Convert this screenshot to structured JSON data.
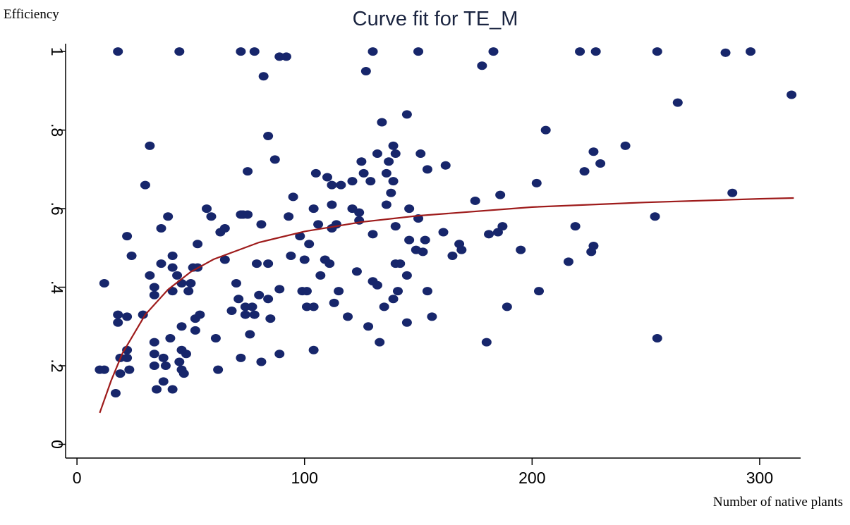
{
  "chart_data": {
    "type": "scatter",
    "title": "Curve fit for TE_M",
    "y_label": "Efficiency",
    "x_label": "Number of native plants",
    "xlim": [
      -5,
      318
    ],
    "xticks": [
      0,
      100,
      200,
      300
    ],
    "ylim": [
      -0.035,
      1.02
    ],
    "yticks": [
      0,
      {
        "value": 0.2,
        "label": ".2"
      },
      {
        "value": 0.4,
        "label": ".4"
      },
      {
        "value": 0.6,
        "label": ".6"
      },
      {
        "value": 0.8,
        "label": ".8"
      },
      1
    ],
    "grid": false,
    "series": [
      {
        "type": "scatter",
        "color": "#17266b",
        "x": [
          18,
          45,
          72,
          78,
          130,
          150,
          183,
          221,
          228,
          255,
          296,
          285,
          89,
          92,
          127,
          178,
          82,
          10,
          12,
          12,
          18,
          18,
          17,
          19,
          19,
          22,
          22,
          23,
          22,
          22,
          24,
          29,
          30,
          32,
          32,
          34,
          34,
          34,
          34,
          34,
          35,
          37,
          37,
          38,
          38,
          40,
          39,
          41,
          42,
          42,
          42,
          42,
          44,
          45,
          46,
          46,
          46,
          46,
          47,
          48,
          49,
          50,
          51,
          52,
          52,
          53,
          53,
          54,
          57,
          59,
          61,
          62,
          63,
          65,
          65,
          68,
          70,
          71,
          72,
          72,
          73,
          74,
          74,
          75,
          75,
          76,
          77,
          78,
          79,
          80,
          81,
          81,
          84,
          84,
          84,
          85,
          87,
          89,
          89,
          93,
          94,
          95,
          98,
          99,
          100,
          101,
          101,
          102,
          104,
          104,
          104,
          105,
          106,
          107,
          109,
          110,
          111,
          112,
          112,
          112,
          113,
          114,
          115,
          116,
          119,
          121,
          121,
          123,
          124,
          124,
          125,
          126,
          128,
          129,
          130,
          130,
          132,
          132,
          133,
          134,
          135,
          136,
          137,
          136,
          138,
          139,
          139,
          139,
          140,
          140,
          140,
          141,
          142,
          145,
          145,
          145,
          146,
          146,
          149,
          150,
          151,
          152,
          153,
          154,
          154,
          156,
          161,
          162,
          165,
          168,
          169,
          175,
          180,
          181,
          185,
          186,
          187,
          189,
          195,
          202,
          203,
          206,
          216,
          219,
          223,
          226,
          227,
          227,
          230,
          241,
          254,
          255,
          264,
          288,
          314
        ],
        "y": [
          1,
          1,
          1,
          1,
          1,
          1,
          1,
          1,
          1,
          1,
          1,
          0.997,
          0.987,
          0.987,
          0.95,
          0.964,
          0.937,
          0.19,
          0.19,
          0.41,
          0.31,
          0.33,
          0.13,
          0.18,
          0.22,
          0.24,
          0.22,
          0.19,
          0.325,
          0.53,
          0.48,
          0.33,
          0.66,
          0.76,
          0.43,
          0.4,
          0.38,
          0.23,
          0.26,
          0.2,
          0.14,
          0.46,
          0.55,
          0.16,
          0.22,
          0.58,
          0.2,
          0.27,
          0.48,
          0.45,
          0.39,
          0.14,
          0.43,
          0.21,
          0.24,
          0.3,
          0.41,
          0.19,
          0.18,
          0.23,
          0.39,
          0.41,
          0.45,
          0.29,
          0.32,
          0.51,
          0.45,
          0.33,
          0.6,
          0.58,
          0.27,
          0.19,
          0.54,
          0.55,
          0.47,
          0.34,
          0.41,
          0.37,
          0.22,
          0.585,
          0.585,
          0.33,
          0.35,
          0.585,
          0.695,
          0.28,
          0.35,
          0.33,
          0.46,
          0.38,
          0.56,
          0.21,
          0.46,
          0.37,
          0.785,
          0.32,
          0.725,
          0.23,
          0.395,
          0.58,
          0.48,
          0.63,
          0.53,
          0.39,
          0.47,
          0.39,
          0.35,
          0.51,
          0.6,
          0.35,
          0.24,
          0.69,
          0.56,
          0.43,
          0.47,
          0.68,
          0.46,
          0.66,
          0.61,
          0.55,
          0.36,
          0.56,
          0.39,
          0.66,
          0.325,
          0.67,
          0.6,
          0.44,
          0.59,
          0.57,
          0.72,
          0.69,
          0.3,
          0.67,
          0.415,
          0.535,
          0.74,
          0.405,
          0.26,
          0.82,
          0.35,
          0.69,
          0.72,
          0.61,
          0.64,
          0.76,
          0.37,
          0.67,
          0.46,
          0.555,
          0.74,
          0.39,
          0.46,
          0.84,
          0.31,
          0.43,
          0.52,
          0.6,
          0.495,
          0.575,
          0.74,
          0.49,
          0.52,
          0.7,
          0.39,
          0.325,
          0.54,
          0.71,
          0.48,
          0.51,
          0.495,
          0.62,
          0.26,
          0.535,
          0.54,
          0.635,
          0.555,
          0.35,
          0.495,
          0.665,
          0.39,
          0.8,
          0.465,
          0.555,
          0.695,
          0.49,
          0.505,
          0.745,
          0.715,
          0.76,
          0.58,
          0.27,
          0.87,
          0.64,
          0.89
        ]
      },
      {
        "type": "line",
        "color": "#9e1b1b",
        "x": [
          10,
          15,
          20,
          30,
          40,
          50,
          60,
          80,
          100,
          125,
          150,
          200,
          250,
          300,
          315
        ],
        "y": [
          0.08,
          0.162,
          0.232,
          0.33,
          0.394,
          0.439,
          0.471,
          0.514,
          0.542,
          0.566,
          0.582,
          0.604,
          0.616,
          0.625,
          0.627
        ]
      }
    ]
  }
}
